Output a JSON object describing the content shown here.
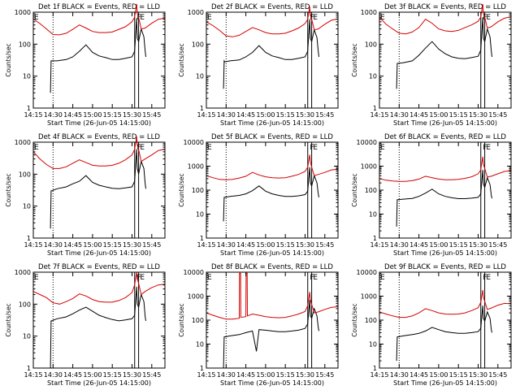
{
  "colors": {
    "events": "#000000",
    "lld": "#d40000",
    "frame": "#000000"
  },
  "xaxis": {
    "label": "Start Time (26-Jun-05 14:15:00)",
    "ticks": [
      "14:15",
      "14:30",
      "14:45",
      "15:00",
      "15:15",
      "15:30",
      "15:45"
    ],
    "tick_minutes": [
      0,
      15,
      30,
      45,
      60,
      75,
      90
    ],
    "range_minutes": [
      0,
      100
    ]
  },
  "yaxis_label": "Counts/sec",
  "markers": {
    "dotted_minute": 15,
    "solid_minutes": [
      77,
      80
    ],
    "top_letters": [
      {
        "text": "E",
        "minute": 0
      },
      {
        "text": "F",
        "minute": 78
      },
      {
        "text": "E",
        "minute": 80.5
      }
    ]
  },
  "chart_data": [
    {
      "type": "line",
      "title": "Det 1f BLACK = Events, RED = LLD",
      "ylim": [
        1,
        1000
      ],
      "yticks": [
        "1",
        "10",
        "100",
        "1000"
      ],
      "log_y": true,
      "series": [
        {
          "name": "Events",
          "x": [
            13,
            13.5,
            14,
            18,
            25,
            30,
            35,
            40,
            45,
            50,
            55,
            60,
            65,
            70,
            75,
            77,
            78.5,
            79,
            80,
            82,
            84,
            85,
            85.5
          ],
          "y": [
            3,
            30,
            30,
            30,
            33,
            40,
            60,
            95,
            55,
            43,
            38,
            33,
            33,
            36,
            40,
            60,
            650,
            150,
            120,
            300,
            170,
            60,
            40
          ]
        },
        {
          "name": "LLD",
          "x": [
            0,
            5,
            10,
            15,
            20,
            25,
            30,
            35,
            40,
            45,
            50,
            55,
            60,
            65,
            70,
            75,
            77,
            78.5,
            79,
            80,
            82,
            85,
            90,
            95,
            100
          ],
          "y": [
            620,
            440,
            300,
            200,
            195,
            220,
            290,
            400,
            320,
            250,
            230,
            230,
            240,
            290,
            350,
            500,
            700,
            1800,
            900,
            700,
            300,
            320,
            450,
            600,
            650
          ]
        }
      ]
    },
    {
      "type": "line",
      "title": "Det 2f BLACK = Events, RED = LLD",
      "ylim": [
        1,
        1000
      ],
      "yticks": [
        "1",
        "10",
        "100",
        "1000"
      ],
      "log_y": true,
      "series": [
        {
          "name": "Events",
          "x": [
            13,
            13.5,
            14,
            18,
            25,
            30,
            35,
            40,
            45,
            50,
            55,
            60,
            65,
            70,
            75,
            77,
            78.5,
            79,
            80,
            82,
            84,
            85,
            85.5
          ],
          "y": [
            4,
            30,
            28,
            30,
            32,
            40,
            55,
            90,
            55,
            43,
            38,
            33,
            33,
            36,
            40,
            60,
            600,
            150,
            120,
            280,
            160,
            60,
            40
          ]
        },
        {
          "name": "LLD",
          "x": [
            0,
            5,
            10,
            15,
            20,
            25,
            30,
            35,
            40,
            45,
            50,
            55,
            60,
            65,
            70,
            75,
            77,
            78.5,
            79,
            80,
            82,
            85,
            90,
            95,
            100
          ],
          "y": [
            500,
            380,
            270,
            180,
            170,
            190,
            250,
            330,
            280,
            230,
            210,
            210,
            220,
            260,
            320,
            440,
            600,
            1500,
            800,
            600,
            280,
            300,
            420,
            560,
            620
          ]
        }
      ]
    },
    {
      "type": "line",
      "title": "Det 3f BLACK = Events, RED = LLD",
      "ylim": [
        1,
        1000
      ],
      "yticks": [
        "1",
        "10",
        "100",
        "1000"
      ],
      "log_y": true,
      "series": [
        {
          "name": "Events",
          "x": [
            13,
            13.5,
            14,
            18,
            25,
            30,
            35,
            40,
            45,
            50,
            55,
            60,
            65,
            70,
            75,
            77,
            78.5,
            79,
            80,
            82,
            84,
            85,
            85.5
          ],
          "y": [
            4,
            25,
            25,
            26,
            30,
            45,
            75,
            120,
            70,
            50,
            40,
            36,
            35,
            38,
            42,
            65,
            700,
            150,
            120,
            300,
            170,
            60,
            40
          ]
        },
        {
          "name": "LLD",
          "x": [
            0,
            5,
            10,
            15,
            20,
            25,
            30,
            35,
            40,
            45,
            50,
            55,
            60,
            65,
            70,
            75,
            77,
            78.5,
            79,
            80,
            82,
            85,
            90,
            95,
            100
          ],
          "y": [
            700,
            420,
            300,
            220,
            210,
            240,
            330,
            600,
            450,
            300,
            260,
            250,
            270,
            330,
            400,
            520,
            700,
            1800,
            900,
            700,
            320,
            350,
            500,
            650,
            720
          ]
        }
      ]
    },
    {
      "type": "line",
      "title": "Det 4f BLACK = Events, RED = LLD",
      "ylim": [
        1,
        1000
      ],
      "yticks": [
        "1",
        "10",
        "100",
        "1000"
      ],
      "log_y": true,
      "series": [
        {
          "name": "Events",
          "x": [
            13,
            13.5,
            14,
            18,
            25,
            30,
            35,
            40,
            45,
            50,
            55,
            60,
            65,
            70,
            75,
            77,
            78.5,
            79,
            80,
            82,
            84,
            85,
            85.5
          ],
          "y": [
            2,
            30,
            30,
            35,
            40,
            50,
            60,
            90,
            55,
            45,
            40,
            36,
            35,
            37,
            40,
            60,
            600,
            150,
            100,
            250,
            150,
            50,
            35
          ]
        },
        {
          "name": "LLD",
          "x": [
            0,
            5,
            10,
            15,
            20,
            25,
            30,
            35,
            40,
            45,
            50,
            55,
            60,
            65,
            70,
            75,
            77,
            78.5,
            79,
            80,
            82,
            85,
            90,
            95,
            100
          ],
          "y": [
            500,
            300,
            200,
            150,
            150,
            170,
            220,
            280,
            230,
            190,
            180,
            180,
            190,
            220,
            280,
            400,
            600,
            1500,
            800,
            600,
            250,
            300,
            400,
            550,
            600
          ]
        }
      ]
    },
    {
      "type": "line",
      "title": "Det 5f BLACK = Events, RED = LLD",
      "ylim": [
        1,
        10000
      ],
      "yticks": [
        "1",
        "10",
        "100",
        "1000",
        "10000"
      ],
      "log_y": true,
      "series": [
        {
          "name": "Events",
          "x": [
            13,
            13.5,
            14,
            18,
            25,
            30,
            35,
            40,
            45,
            50,
            55,
            60,
            65,
            70,
            75,
            77,
            78.5,
            79,
            80,
            82,
            84,
            85,
            85.5
          ],
          "y": [
            5,
            50,
            50,
            55,
            60,
            70,
            95,
            150,
            90,
            70,
            60,
            55,
            55,
            58,
            65,
            90,
            900,
            200,
            150,
            400,
            200,
            70,
            50
          ]
        },
        {
          "name": "LLD",
          "x": [
            0,
            5,
            10,
            15,
            20,
            25,
            30,
            35,
            40,
            45,
            50,
            55,
            60,
            65,
            70,
            75,
            77,
            78.5,
            79,
            80,
            82,
            85,
            90,
            95,
            100
          ],
          "y": [
            400,
            330,
            280,
            270,
            280,
            320,
            380,
            550,
            430,
            360,
            330,
            320,
            330,
            380,
            450,
            600,
            900,
            3000,
            1500,
            900,
            400,
            450,
            550,
            700,
            750
          ]
        }
      ]
    },
    {
      "type": "line",
      "title": "Det 6f BLACK = Events, RED = LLD",
      "ylim": [
        1,
        10000
      ],
      "yticks": [
        "1",
        "10",
        "100",
        "1000",
        "10000"
      ],
      "log_y": true,
      "series": [
        {
          "name": "Events",
          "x": [
            13,
            13.5,
            14,
            18,
            25,
            30,
            35,
            40,
            45,
            50,
            55,
            60,
            65,
            70,
            75,
            77,
            78.5,
            79,
            80,
            82,
            84,
            85,
            85.5
          ],
          "y": [
            3,
            40,
            40,
            42,
            45,
            55,
            75,
            110,
            70,
            55,
            48,
            44,
            44,
            46,
            50,
            70,
            700,
            180,
            130,
            330,
            170,
            60,
            45
          ]
        },
        {
          "name": "LLD",
          "x": [
            0,
            5,
            10,
            15,
            20,
            25,
            30,
            35,
            40,
            45,
            50,
            55,
            60,
            65,
            70,
            75,
            77,
            78.5,
            79,
            80,
            82,
            85,
            90,
            95,
            100
          ],
          "y": [
            300,
            260,
            240,
            230,
            230,
            250,
            290,
            380,
            330,
            290,
            270,
            270,
            280,
            310,
            360,
            480,
            700,
            2500,
            1200,
            800,
            350,
            380,
            480,
            600,
            650
          ]
        }
      ]
    },
    {
      "type": "line",
      "title": "Det 7f BLACK = Events, RED = LLD",
      "ylim": [
        1,
        1000
      ],
      "yticks": [
        "1",
        "10",
        "100",
        "1000"
      ],
      "log_y": true,
      "series": [
        {
          "name": "Events",
          "x": [
            13,
            13.5,
            14,
            18,
            25,
            30,
            35,
            40,
            45,
            50,
            55,
            60,
            65,
            70,
            75,
            77,
            78.5,
            79,
            80,
            82,
            84,
            85,
            85.5
          ],
          "y": [
            1,
            30,
            30,
            35,
            40,
            50,
            65,
            80,
            60,
            45,
            38,
            33,
            30,
            32,
            35,
            45,
            350,
            100,
            80,
            200,
            120,
            40,
            30
          ]
        },
        {
          "name": "LLD",
          "x": [
            0,
            5,
            10,
            15,
            20,
            25,
            30,
            35,
            40,
            45,
            50,
            55,
            60,
            65,
            70,
            75,
            77,
            78.5,
            79,
            80,
            82,
            85,
            90,
            95,
            100
          ],
          "y": [
            250,
            200,
            160,
            110,
            100,
            120,
            150,
            210,
            180,
            140,
            120,
            115,
            115,
            130,
            160,
            230,
            400,
            1000,
            600,
            450,
            200,
            250,
            330,
            400,
            420
          ]
        }
      ]
    },
    {
      "type": "line",
      "title": "Det 8f BLACK = Events, RED = LLD",
      "ylim": [
        1,
        10000
      ],
      "yticks": [
        "1",
        "10",
        "100",
        "1000",
        "10000"
      ],
      "log_y": true,
      "series": [
        {
          "name": "Events",
          "x": [
            13,
            13.5,
            14,
            18,
            25,
            30,
            35,
            38,
            40,
            45,
            50,
            55,
            60,
            65,
            70,
            75,
            77,
            78.5,
            79,
            80,
            82,
            84,
            85,
            85.5
          ],
          "y": [
            1,
            20,
            20,
            22,
            25,
            30,
            35,
            5,
            40,
            38,
            35,
            33,
            33,
            35,
            38,
            45,
            70,
            700,
            150,
            120,
            300,
            150,
            50,
            35
          ]
        },
        {
          "name": "LLD",
          "x": [
            0,
            5,
            10,
            15,
            20,
            25,
            25.2,
            26,
            26.2,
            30,
            30.2,
            31,
            31.2,
            35,
            40,
            45,
            50,
            55,
            60,
            65,
            70,
            75,
            77,
            78.5,
            79,
            80,
            82,
            85,
            90,
            95,
            100
          ],
          "y": [
            200,
            160,
            130,
            110,
            110,
            120,
            9000,
            9000,
            130,
            140,
            9000,
            9000,
            150,
            180,
            160,
            140,
            130,
            125,
            130,
            150,
            180,
            230,
            400,
            1500,
            700,
            450,
            200,
            220,
            280,
            340,
            360
          ]
        }
      ]
    },
    {
      "type": "line",
      "title": "Det 9f BLACK = Events, RED = LLD",
      "ylim": [
        1,
        10000
      ],
      "yticks": [
        "1",
        "10",
        "100",
        "1000",
        "10000"
      ],
      "log_y": true,
      "series": [
        {
          "name": "Events",
          "x": [
            13,
            13.5,
            14,
            18,
            25,
            30,
            35,
            40,
            45,
            50,
            55,
            60,
            65,
            70,
            75,
            77,
            78.5,
            79,
            80,
            82,
            84,
            85,
            85.5
          ],
          "y": [
            2,
            20,
            20,
            22,
            25,
            28,
            35,
            50,
            40,
            33,
            30,
            28,
            28,
            30,
            33,
            45,
            400,
            120,
            90,
            220,
            120,
            40,
            30
          ]
        },
        {
          "name": "LLD",
          "x": [
            0,
            5,
            10,
            15,
            20,
            25,
            30,
            35,
            40,
            45,
            50,
            55,
            60,
            65,
            70,
            75,
            77,
            78.5,
            79,
            80,
            82,
            85,
            90,
            95,
            100
          ],
          "y": [
            220,
            180,
            150,
            130,
            130,
            150,
            200,
            300,
            250,
            200,
            180,
            175,
            180,
            200,
            250,
            330,
            550,
            1800,
            900,
            600,
            280,
            320,
            420,
            500,
            480
          ]
        }
      ]
    }
  ]
}
